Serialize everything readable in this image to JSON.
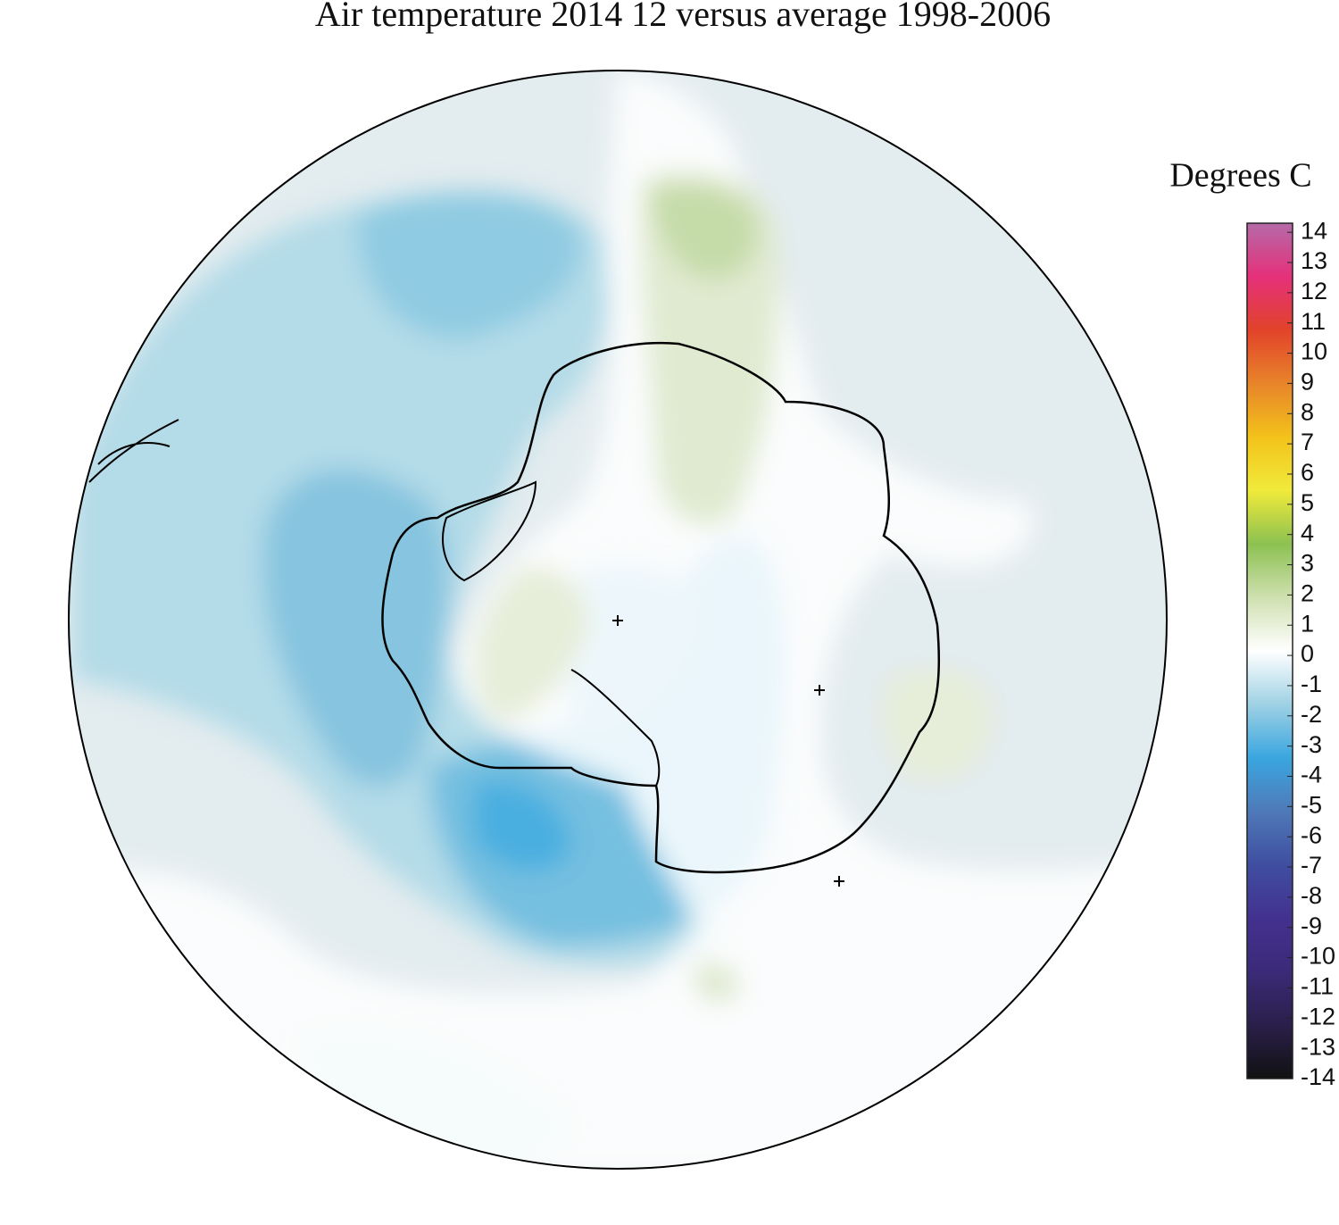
{
  "title": "Air temperature 2014 12 versus average 1998-2006",
  "colorbar": {
    "title": "Degrees C",
    "range": [
      -14,
      14.3
    ],
    "ticks": [
      14,
      13,
      12,
      11,
      10,
      9,
      8,
      7,
      6,
      5,
      4,
      3,
      2,
      1,
      0,
      -1,
      -2,
      -3,
      -4,
      -5,
      -6,
      -7,
      -8,
      -9,
      -10,
      -11,
      -12,
      -13,
      -14
    ],
    "colors": [
      "#111111",
      "#2a1f4a",
      "#3b2a78",
      "#43318f",
      "#3f4ea0",
      "#4f79b8",
      "#3aa6df",
      "#9fd1e4",
      "#ffffff",
      "#cfe0b0",
      "#8cc151",
      "#f0ea3a",
      "#f3c21a",
      "#e8842a",
      "#e2432a",
      "#e5307a",
      "#b56aa8"
    ]
  }
}
